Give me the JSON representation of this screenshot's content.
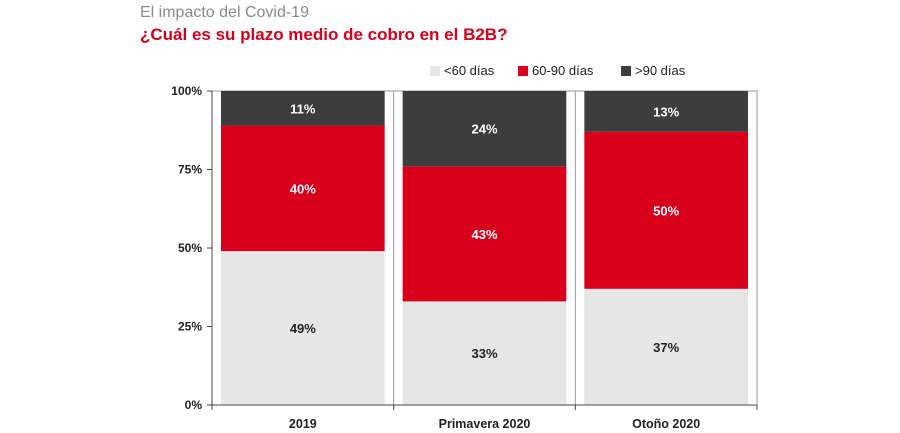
{
  "header": {
    "pretitle": "El impacto del Covid-19",
    "title": "¿Cuál es su plazo medio de cobro en el B2B?"
  },
  "chart_data": {
    "type": "bar",
    "stacked": true,
    "percent": true,
    "title": "¿Cuál es su plazo medio de cobro en el B2B?",
    "categories": [
      "2019",
      "Primavera 2020",
      "Otoño 2020"
    ],
    "series": [
      {
        "name": "<60 días",
        "color": "#e6e6e6",
        "label_color": "#222222",
        "values": [
          49,
          33,
          37
        ]
      },
      {
        "name": "60-90 días",
        "color": "#d9001b",
        "label_color": "#ffffff",
        "values": [
          40,
          43,
          50
        ]
      },
      {
        "name": ">90 días",
        "color": "#3d3d3d",
        "label_color": "#ffffff",
        "values": [
          11,
          24,
          13
        ]
      }
    ],
    "data_labels": [
      [
        "49%",
        "33%",
        "37%"
      ],
      [
        "40%",
        "43%",
        "50%"
      ],
      [
        "11%",
        "24%",
        "13%"
      ]
    ],
    "yticks": [
      0,
      25,
      50,
      75,
      100
    ],
    "ytick_labels": [
      "0%",
      "25%",
      "50%",
      "75%",
      "100%"
    ],
    "ylim": [
      0,
      100
    ],
    "xlabel": "",
    "ylabel": "",
    "legend_position": "top-right",
    "grid": false
  }
}
